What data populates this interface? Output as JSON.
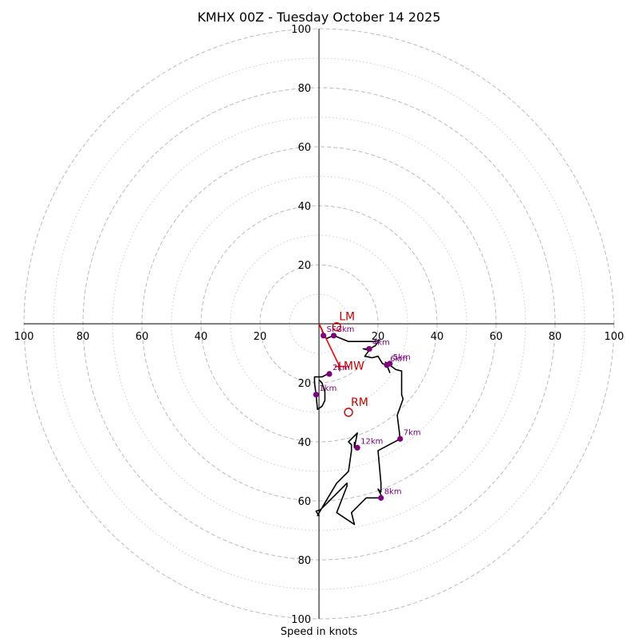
{
  "chart_data": {
    "type": "hodograph",
    "title": "KMHX 00Z - Tuesday October 14 2025",
    "xlabel": "Speed in knots",
    "rmax": 100,
    "tick_labels": [
      "20",
      "40",
      "60",
      "80",
      "100"
    ],
    "ring_step_major": 20,
    "ring_step_minor": 10,
    "grid": true,
    "colors": {
      "trace": "#000000",
      "height_marker": "#800080",
      "motion": "#cc0000",
      "mean_wind_line": "#ff0000",
      "grid": "#bbbbbb",
      "axis": "#000000"
    },
    "trace_points": [
      {
        "u": 0,
        "v": 0
      },
      {
        "u": 1,
        "v": -2
      },
      {
        "u": 1.5,
        "v": -4
      },
      {
        "u": 2.5,
        "v": -5
      },
      {
        "u": 5,
        "v": -4
      },
      {
        "u": 10,
        "v": -6
      },
      {
        "u": 19,
        "v": -6
      },
      {
        "u": 20.5,
        "v": -5.5
      },
      {
        "u": 19,
        "v": -7.5
      },
      {
        "u": 17,
        "v": -8.5
      },
      {
        "u": 15,
        "v": -8.5
      },
      {
        "u": 17,
        "v": -9
      },
      {
        "u": 15.5,
        "v": -11
      },
      {
        "u": 18,
        "v": -11.5
      },
      {
        "u": 20,
        "v": -11
      },
      {
        "u": 21.5,
        "v": -13.5
      },
      {
        "u": 23,
        "v": -14
      },
      {
        "u": 24,
        "v": -16.5
      },
      {
        "u": 22.5,
        "v": -13
      },
      {
        "u": 24,
        "v": -14
      },
      {
        "u": 26,
        "v": -15.5
      },
      {
        "u": 28,
        "v": -16
      },
      {
        "u": 28,
        "v": -24
      },
      {
        "u": 28.5,
        "v": -25.5
      },
      {
        "u": 26.5,
        "v": -31
      },
      {
        "u": 27.5,
        "v": -39
      },
      {
        "u": 20,
        "v": -43
      },
      {
        "u": 21,
        "v": -54
      },
      {
        "u": 21,
        "v": -57
      },
      {
        "u": 20,
        "v": -56
      },
      {
        "u": 21.5,
        "v": -59
      },
      {
        "u": 16,
        "v": -59
      },
      {
        "u": 11,
        "v": -64
      },
      {
        "u": 12,
        "v": -68
      },
      {
        "u": 6,
        "v": -64
      },
      {
        "u": 9.5,
        "v": -55
      },
      {
        "u": 9.5,
        "v": -54
      },
      {
        "u": 7.5,
        "v": -56
      },
      {
        "u": 0.5,
        "v": -63
      },
      {
        "u": -1,
        "v": -63.5
      },
      {
        "u": 0,
        "v": -65
      },
      {
        "u": -0.5,
        "v": -65
      },
      {
        "u": 3,
        "v": -59
      },
      {
        "u": 6,
        "v": -54
      },
      {
        "u": 10,
        "v": -50
      },
      {
        "u": 11,
        "v": -43
      },
      {
        "u": 11,
        "v": -41
      },
      {
        "u": 10,
        "v": -40
      },
      {
        "u": 11,
        "v": -39
      },
      {
        "u": 13,
        "v": -37
      },
      {
        "u": 12,
        "v": -42
      },
      {
        "u": 12,
        "v": -40
      }
    ],
    "lower_trace_points": [
      {
        "u": 3,
        "v": -17
      },
      {
        "u": 1,
        "v": -18
      },
      {
        "u": -1.5,
        "v": -18
      },
      {
        "u": -1.5,
        "v": -20
      },
      {
        "u": -1,
        "v": -24
      },
      {
        "u": -0.5,
        "v": -29
      },
      {
        "u": 1,
        "v": -28
      },
      {
        "u": 2,
        "v": -26
      },
      {
        "u": 2,
        "v": -23
      },
      {
        "u": 1,
        "v": -20
      },
      {
        "u": 0,
        "v": -19
      }
    ],
    "height_markers": [
      {
        "label": "1km",
        "u": -1,
        "v": -24
      },
      {
        "label": "2km",
        "u": 3.5,
        "v": -17
      },
      {
        "label": "3km",
        "u": 5,
        "v": -4
      },
      {
        "label": "4km",
        "u": 17,
        "v": -8.5
      },
      {
        "label": "5km",
        "u": 24,
        "v": -13.5
      },
      {
        "label": "6km",
        "u": 23,
        "v": -14
      },
      {
        "label": "7km",
        "u": 27.5,
        "v": -39
      },
      {
        "label": "8km",
        "u": 21,
        "v": -59
      },
      {
        "label": "12km",
        "u": 13,
        "v": -42
      },
      {
        "label": "SFC",
        "u": 1.5,
        "v": -4
      }
    ],
    "storm_motion_markers": [
      {
        "label": "LM",
        "u": 6,
        "v": -1
      },
      {
        "label": "RM",
        "u": 10,
        "v": -30
      }
    ],
    "mean_wind": {
      "label": "MW",
      "u": 7,
      "v": -14.5
    },
    "mean_wind_line": [
      {
        "u": 0,
        "v": 0
      },
      {
        "u": 7,
        "v": -14.5
      }
    ]
  }
}
